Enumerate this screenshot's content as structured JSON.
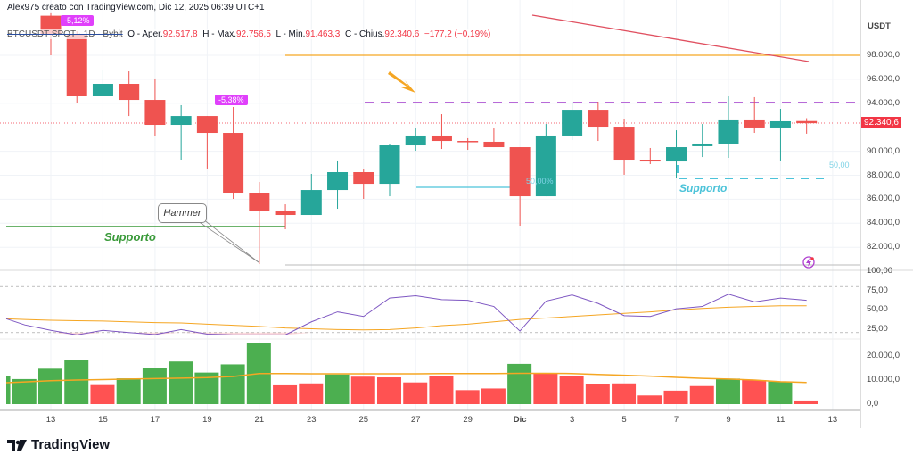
{
  "header": {
    "attribution": "Alex975 creato con TradingView.com, Dic 12, 2025 06:39 UTC+1"
  },
  "legend": {
    "symbol": "BTCUSDT SPOT · 1D · Bybit",
    "open_label": "O - Aper.",
    "open": "92.517,8",
    "high_label": "H - Max.",
    "high": "92.756,5",
    "low_label": "L - Min.",
    "low": "91.463,3",
    "close_label": "C - Chius.",
    "close": "92.340,6",
    "change": "−177,2 (−0,19%)"
  },
  "price_axis": {
    "currency": "USDT",
    "ticks": [
      "98.000,0",
      "96.000,0",
      "94.000,0",
      "90.000,0",
      "88.000,0",
      "86.000,0",
      "84.000,0",
      "82.000,0"
    ],
    "tick_values": [
      98000,
      96000,
      94000,
      90000,
      88000,
      86000,
      84000,
      82000
    ],
    "last_price": "92.340,6"
  },
  "rsi_axis": {
    "ticks": [
      "100,00",
      "75,00",
      "50,00",
      "25,00"
    ],
    "tick_values": [
      100,
      75,
      50,
      25
    ],
    "bands": [
      80,
      20
    ]
  },
  "volume_axis": {
    "ticks": [
      "20.000,0",
      "10.000,0",
      "0,0"
    ],
    "tick_values": [
      20000,
      10000,
      0
    ]
  },
  "time_axis": {
    "ticks": [
      "13",
      "15",
      "17",
      "19",
      "21",
      "23",
      "25",
      "27",
      "29",
      "Dic",
      "3",
      "5",
      "7",
      "9",
      "11",
      "13"
    ],
    "tick_dates": [
      "2025-11-13",
      "2025-11-15",
      "2025-11-17",
      "2025-11-19",
      "2025-11-21",
      "2025-11-23",
      "2025-11-25",
      "2025-11-27",
      "2025-11-29",
      "2025-12-01",
      "2025-12-03",
      "2025-12-05",
      "2025-12-07",
      "2025-12-09",
      "2025-12-11",
      "2025-12-13"
    ]
  },
  "colors": {
    "up": "#26a69a",
    "down": "#ef5350",
    "vol_up": "#4caf50",
    "vol_down": "#ff5252",
    "rsi": "#7e57c2",
    "ma": "#f5a623",
    "badge": "#e040fb",
    "support_green": "#3a9a3a",
    "support_cyan": "#4cc3d9",
    "resistance_dashed": "#b86ad8",
    "trendline": "#e05060"
  },
  "chart_data": {
    "type": "candlestick",
    "dates": [
      "2025-11-11",
      "2025-11-12",
      "2025-11-13",
      "2025-11-14",
      "2025-11-15",
      "2025-11-16",
      "2025-11-17",
      "2025-11-18",
      "2025-11-19",
      "2025-11-20",
      "2025-11-21",
      "2025-11-22",
      "2025-11-23",
      "2025-11-24",
      "2025-11-25",
      "2025-11-26",
      "2025-11-27",
      "2025-11-28",
      "2025-11-29",
      "2025-11-30",
      "2025-12-01",
      "2025-12-02",
      "2025-12-03",
      "2025-12-04",
      "2025-12-05",
      "2025-12-06",
      "2025-12-07",
      "2025-12-08",
      "2025-12-09",
      "2025-12-10",
      "2025-12-11",
      "2025-12-12"
    ],
    "ohlc": [
      null,
      null,
      [
        101300,
        101500,
        98000,
        99710
      ],
      [
        99710,
        100000,
        93985,
        94580
      ],
      [
        94580,
        96810,
        94580,
        95620
      ],
      [
        95620,
        96660,
        92940,
        94280
      ],
      [
        94280,
        96070,
        91234,
        92200
      ],
      [
        92200,
        93840,
        89300,
        92940
      ],
      [
        92940,
        92940,
        88560,
        91530
      ],
      [
        91530,
        93690,
        86030,
        86550
      ],
      [
        86550,
        87440,
        80600,
        85060
      ],
      [
        85060,
        85580,
        83500,
        84690
      ],
      [
        84690,
        88110,
        84690,
        86770
      ],
      [
        86770,
        89230,
        85210,
        88260
      ],
      [
        88260,
        88480,
        86030,
        87290
      ],
      [
        87290,
        90640,
        86250,
        90490
      ],
      [
        90490,
        91900,
        90040,
        91310
      ],
      [
        91310,
        93090,
        90190,
        90860
      ],
      [
        90860,
        91090,
        90120,
        90790
      ],
      [
        90790,
        91900,
        90340,
        90340
      ],
      [
        90340,
        90340,
        83800,
        86250
      ],
      [
        86250,
        92270,
        86250,
        91310
      ],
      [
        91310,
        94130,
        90940,
        93460
      ],
      [
        93460,
        94130,
        90860,
        92050
      ],
      [
        92050,
        92720,
        88040,
        89300
      ],
      [
        89300,
        90270,
        88930,
        89150
      ],
      [
        89150,
        91750,
        87740,
        90340
      ],
      [
        90420,
        92270,
        89520,
        90640
      ],
      [
        90640,
        94580,
        89450,
        92650
      ],
      [
        92650,
        94510,
        91530,
        91980
      ],
      [
        91980,
        93540,
        89230,
        92500
      ],
      [
        92517.8,
        92756.5,
        91463.3,
        92340.6
      ]
    ],
    "volume": [
      11600,
      10400,
      14700,
      18500,
      7900,
      10700,
      15100,
      17700,
      13100,
      16500,
      25300,
      7800,
      8600,
      12300,
      11400,
      11100,
      9000,
      11800,
      5800,
      6500,
      16700,
      12600,
      11800,
      8400,
      8600,
      3600,
      5600,
      7500,
      10600,
      10000,
      9400,
      1500
    ],
    "volume_up": [
      true,
      true,
      true,
      true,
      false,
      true,
      true,
      true,
      true,
      true,
      true,
      false,
      false,
      true,
      false,
      false,
      false,
      false,
      false,
      false,
      true,
      false,
      false,
      false,
      false,
      false,
      false,
      false,
      true,
      false,
      true,
      false
    ],
    "volume_ma": [
      8900,
      9200,
      9700,
      10000,
      10200,
      10400,
      10600,
      10800,
      11000,
      11500,
      12700,
      12700,
      12600,
      12600,
      12600,
      12600,
      12600,
      12700,
      12700,
      12700,
      12800,
      12800,
      12700,
      12300,
      12000,
      11600,
      11100,
      10700,
      10400,
      10000,
      9300,
      9000
    ],
    "rsi": [
      38,
      30,
      23,
      17,
      23,
      20,
      17.5,
      24,
      18,
      17,
      17,
      17,
      34,
      47,
      41,
      65,
      68,
      63,
      62,
      54,
      22,
      61,
      69,
      58,
      42,
      41,
      51,
      54,
      70,
      60,
      65,
      62
    ],
    "rsi_ma": [
      38,
      37,
      36,
      35.5,
      35,
      34,
      33,
      32.5,
      31,
      29.5,
      28,
      26,
      25,
      24,
      23.5,
      24,
      26,
      29,
      31,
      34,
      37,
      39,
      41,
      43,
      45,
      47,
      49.5,
      51.5,
      53,
      54,
      55,
      55
    ]
  },
  "annotations": {
    "badge_1": "-5,12%",
    "badge_2": "-5,38%",
    "hammer": "Hammer",
    "support_left": "Supporto",
    "support_right": "Supporto",
    "fib_label_1": "50,00%",
    "fib_label_2": "50,00",
    "resistance_level": 94000,
    "horizontal_level": 98000,
    "support_level_left": 83800,
    "support_level_right": 87800,
    "alert_icon": "lightning-alert-icon",
    "arrow_icon": "orange-arrow-icon"
  },
  "footer": {
    "logo": "TradingView"
  }
}
